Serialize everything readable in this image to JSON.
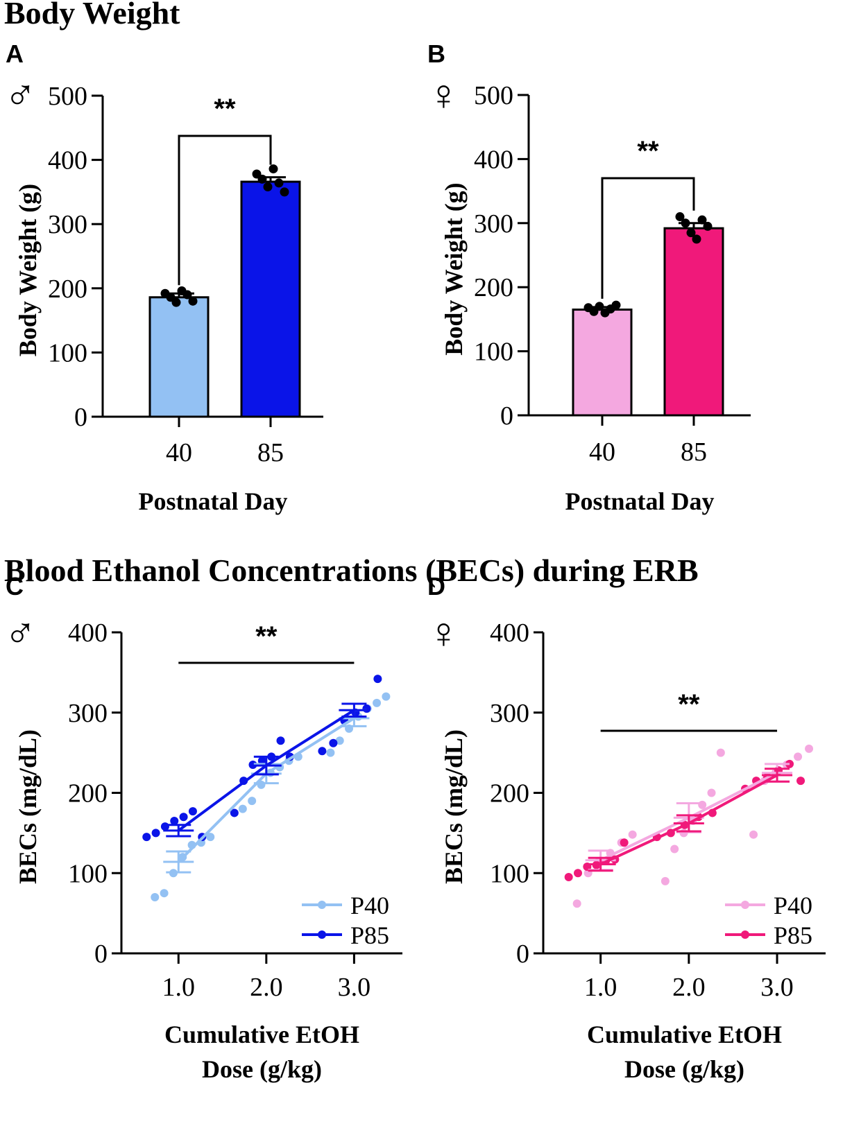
{
  "sections": {
    "body_weight": "Body Weight",
    "becs": "Blood Ethanol Concentrations (BECs) during ERB"
  },
  "chart_data": [
    {
      "panel": "A",
      "sex_symbol": "♂",
      "type": "bar",
      "section": "Body Weight",
      "categories": [
        "40",
        "85"
      ],
      "values": [
        186,
        366
      ],
      "errors": [
        6,
        7
      ],
      "points": [
        [
          192,
          186,
          178,
          196,
          190,
          180
        ],
        [
          378,
          370,
          358,
          386,
          364,
          350
        ]
      ],
      "colors": [
        "#93c1f3",
        "#0a14e8"
      ],
      "xlabel": "Postnatal Day",
      "ylabel": "Body Weight (g)",
      "ylim": [
        0,
        500
      ],
      "yticks": [
        0,
        100,
        200,
        300,
        400,
        500
      ],
      "significance": {
        "label": "**",
        "from": "40",
        "to": "85"
      }
    },
    {
      "panel": "B",
      "sex_symbol": "♀",
      "type": "bar",
      "section": "Body Weight",
      "categories": [
        "40",
        "85"
      ],
      "values": [
        165,
        292
      ],
      "errors": [
        4,
        8
      ],
      "points": [
        [
          168,
          162,
          170,
          160,
          166,
          172
        ],
        [
          310,
          300,
          285,
          275,
          305,
          295
        ]
      ],
      "colors": [
        "#f4a8e0",
        "#f0197a"
      ],
      "xlabel": "Postnatal Day",
      "ylabel": "Body Weight (g)",
      "ylim": [
        0,
        500
      ],
      "yticks": [
        0,
        100,
        200,
        300,
        400,
        500
      ],
      "significance": {
        "label": "**",
        "from": "40",
        "to": "85"
      }
    },
    {
      "panel": "C",
      "sex_symbol": "♂",
      "type": "line",
      "section": "Blood Ethanol Concentrations (BECs) during ERB",
      "x": [
        1.0,
        2.0,
        3.0
      ],
      "xticklabels": [
        "1.0",
        "2.0",
        "3.0"
      ],
      "xlim": [
        0.35,
        3.55
      ],
      "series": [
        {
          "name": "P40",
          "color": "#93c1f3",
          "values": [
            114,
            224,
            293
          ],
          "errors": [
            13,
            12,
            10
          ],
          "points": [
            [
              70,
              75,
              100,
              120,
              135,
              138,
              145
            ],
            [
              180,
              190,
              210,
              225,
              232,
              240,
              245
            ],
            [
              250,
              265,
              280,
              295,
              305,
              312,
              320
            ]
          ]
        },
        {
          "name": "P85",
          "color": "#0a14e8",
          "values": [
            153,
            234,
            303
          ],
          "errors": [
            7,
            11,
            8
          ],
          "points": [
            [
              145,
              150,
              158,
              165,
              170,
              177,
              145
            ],
            [
              175,
              215,
              235,
              240,
              245,
              265,
              245
            ],
            [
              252,
              262,
              290,
              300,
              305,
              342
            ]
          ]
        }
      ],
      "xlabel": "Cumulative EtOH Dose (g/kg)",
      "ylabel": "BECs (mg/dL)",
      "ylim": [
        0,
        400
      ],
      "yticks": [
        0,
        100,
        200,
        300,
        400
      ],
      "significance": {
        "label": "**",
        "from": 1.0,
        "to": 3.0
      },
      "legend_position": "bottom-right"
    },
    {
      "panel": "D",
      "sex_symbol": "♀",
      "type": "line",
      "section": "Blood Ethanol Concentrations (BECs) during ERB",
      "x": [
        1.0,
        2.0,
        3.0
      ],
      "xticklabels": [
        "1.0",
        "2.0",
        "3.0"
      ],
      "xlim": [
        0.35,
        3.55
      ],
      "series": [
        {
          "name": "P40",
          "color": "#f4a8e0",
          "values": [
            116,
            169,
            225
          ],
          "errors": [
            12,
            18,
            11
          ],
          "points": [
            [
              62,
              100,
              115,
              125,
              138,
              148
            ],
            [
              90,
              130,
              150,
              165,
              185,
              200,
              250
            ],
            [
              148,
              215,
              225,
              235,
              245,
              255
            ]
          ]
        },
        {
          "name": "P85",
          "color": "#f0197a",
          "values": [
            111,
            162,
            222
          ],
          "errors": [
            8,
            10,
            8
          ],
          "points": [
            [
              95,
              100,
              108,
              110,
              115,
              117,
              138
            ],
            [
              145,
              150,
              160,
              170,
              175
            ],
            [
              205,
              215,
              220,
              228,
              236,
              215
            ]
          ]
        }
      ],
      "xlabel": "Cumulative EtOH Dose (g/kg)",
      "ylabel": "BECs (mg/dL)",
      "ylim": [
        0,
        400
      ],
      "yticks": [
        0,
        100,
        200,
        300,
        400
      ],
      "significance": {
        "label": "**",
        "from": 1.0,
        "to": 3.0
      },
      "legend_position": "bottom-right"
    }
  ]
}
